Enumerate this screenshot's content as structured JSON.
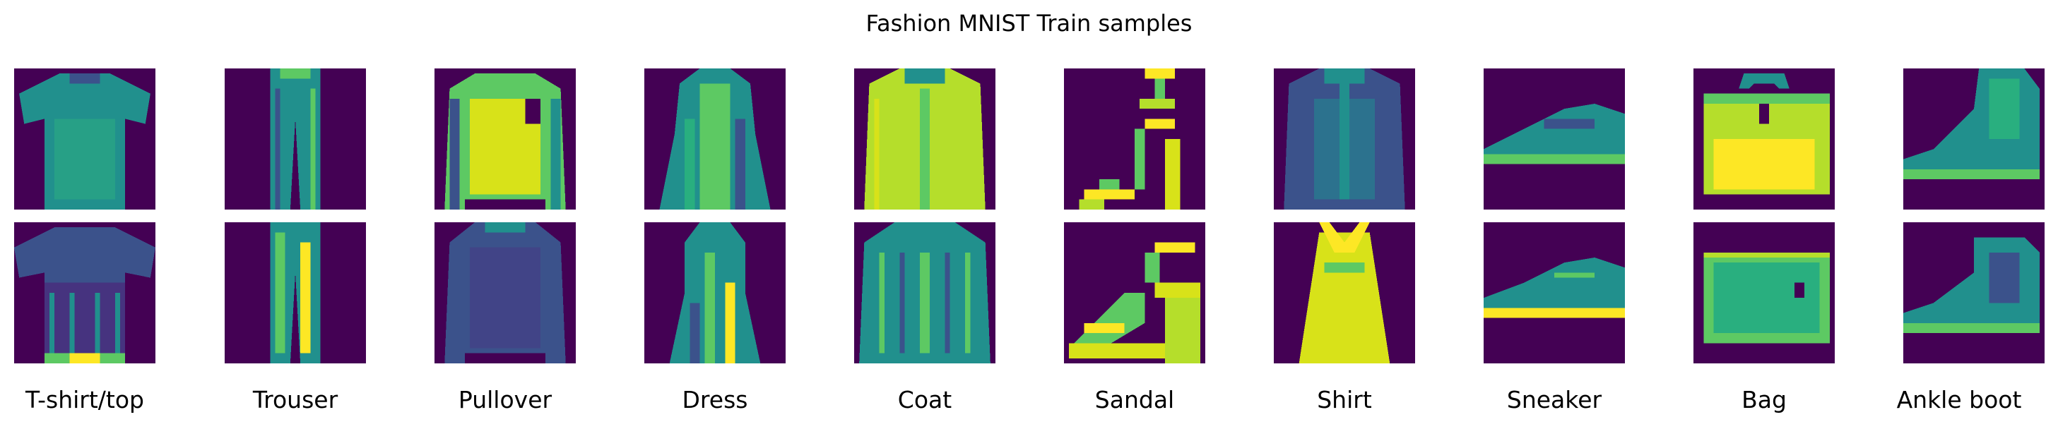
{
  "figure": {
    "title": "Fashion MNIST Train samples",
    "background_color": "#440154",
    "colormap": [
      "#440154",
      "#3b528b",
      "#21908d",
      "#5dc963",
      "#fde725"
    ]
  },
  "classes": [
    {
      "label": "T-shirt/top",
      "samples": [
        "tshirt-sample-icon",
        "tshirt-sample-icon"
      ]
    },
    {
      "label": "Trouser",
      "samples": [
        "trouser-sample-icon",
        "trouser-sample-icon"
      ]
    },
    {
      "label": "Pullover",
      "samples": [
        "pullover-sample-icon",
        "pullover-sample-icon"
      ]
    },
    {
      "label": "Dress",
      "samples": [
        "dress-sample-icon",
        "dress-sample-icon"
      ]
    },
    {
      "label": "Coat",
      "samples": [
        "coat-sample-icon",
        "coat-sample-icon"
      ]
    },
    {
      "label": "Sandal",
      "samples": [
        "sandal-sample-icon",
        "sandal-sample-icon"
      ]
    },
    {
      "label": "Shirt",
      "samples": [
        "shirt-sample-icon",
        "shirt-sample-icon"
      ]
    },
    {
      "label": "Sneaker",
      "samples": [
        "sneaker-sample-icon",
        "sneaker-sample-icon"
      ]
    },
    {
      "label": "Bag",
      "samples": [
        "bag-sample-icon",
        "bag-sample-icon"
      ]
    },
    {
      "label": "Ankle boot",
      "samples": [
        "ankle-boot-sample-icon",
        "ankle-boot-sample-icon"
      ]
    }
  ]
}
